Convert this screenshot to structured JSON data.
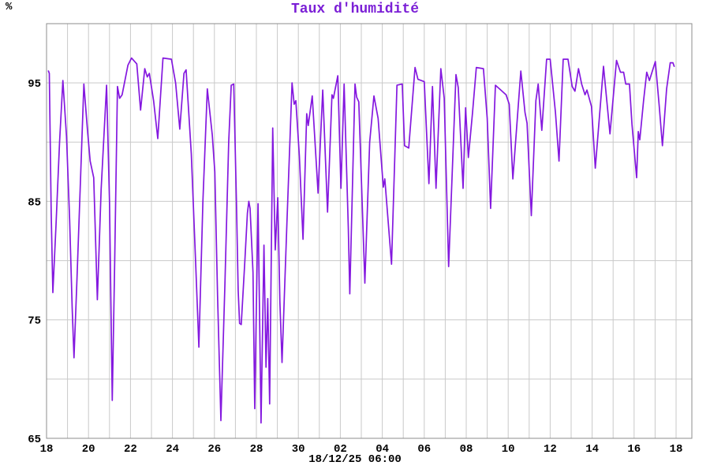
{
  "title": "Taux d'humidité",
  "y_axis": {
    "unit_label": "%",
    "tick_labels": [
      "95",
      "85",
      "75",
      "65"
    ],
    "tick_values": [
      95,
      85,
      75,
      65
    ],
    "min": 65,
    "max": 100,
    "grid_step": 5
  },
  "x_axis": {
    "tick_labels": [
      "18",
      "20",
      "22",
      "24",
      "26",
      "28",
      "30",
      "02",
      "04",
      "06",
      "08",
      "10",
      "12",
      "14",
      "16",
      "18"
    ],
    "caption": "18/12/25 06:00",
    "gridline_interval_days": 1,
    "label_interval_days": 2
  },
  "colors": {
    "line": "#8418df",
    "title": "#7b1fd6",
    "grid": "#c9c9c9",
    "axis_border": "#8c8c8c",
    "text": "#000000",
    "background": "#ffffff"
  },
  "chart_data": {
    "type": "line",
    "title": "Taux d'humidité",
    "ylabel": "%",
    "ylim": [
      65,
      100
    ],
    "grid": true,
    "legend_position": "none",
    "x_unit": "days since 18/12/25 06:00",
    "x_tick_labels": [
      "18",
      "20",
      "22",
      "24",
      "26",
      "28",
      "30",
      "02",
      "04",
      "06",
      "08",
      "10",
      "12",
      "14",
      "16",
      "18"
    ],
    "points": [
      [
        0.09,
        96.0
      ],
      [
        0.13,
        95.8
      ],
      [
        0.22,
        84.0
      ],
      [
        0.3,
        77.3
      ],
      [
        0.45,
        83.0
      ],
      [
        0.62,
        90.0
      ],
      [
        0.78,
        95.2
      ],
      [
        0.95,
        90.5
      ],
      [
        1.1,
        83.4
      ],
      [
        1.22,
        76.0
      ],
      [
        1.31,
        71.8
      ],
      [
        1.45,
        78.5
      ],
      [
        1.6,
        86.0
      ],
      [
        1.78,
        94.9
      ],
      [
        1.95,
        91.0
      ],
      [
        2.08,
        88.4
      ],
      [
        2.25,
        87.0
      ],
      [
        2.42,
        76.7
      ],
      [
        2.6,
        86.0
      ],
      [
        2.86,
        94.8
      ],
      [
        3.0,
        85.0
      ],
      [
        3.13,
        68.2
      ],
      [
        3.25,
        80.0
      ],
      [
        3.38,
        94.7
      ],
      [
        3.48,
        93.7
      ],
      [
        3.6,
        94.0
      ],
      [
        3.88,
        96.5
      ],
      [
        4.05,
        97.1
      ],
      [
        4.3,
        96.6
      ],
      [
        4.48,
        92.7
      ],
      [
        4.68,
        96.2
      ],
      [
        4.8,
        95.5
      ],
      [
        4.9,
        95.8
      ],
      [
        5.1,
        93.5
      ],
      [
        5.3,
        90.3
      ],
      [
        5.55,
        97.1
      ],
      [
        5.95,
        97.0
      ],
      [
        6.15,
        95.0
      ],
      [
        6.35,
        91.1
      ],
      [
        6.55,
        95.8
      ],
      [
        6.65,
        96.1
      ],
      [
        6.9,
        89.0
      ],
      [
        7.1,
        80.0
      ],
      [
        7.26,
        72.7
      ],
      [
        7.45,
        85.0
      ],
      [
        7.66,
        94.5
      ],
      [
        7.9,
        90.6
      ],
      [
        8.02,
        87.5
      ],
      [
        8.15,
        77.0
      ],
      [
        8.31,
        66.5
      ],
      [
        8.5,
        78.0
      ],
      [
        8.68,
        90.0
      ],
      [
        8.8,
        94.8
      ],
      [
        8.92,
        94.9
      ],
      [
        9.05,
        85.0
      ],
      [
        9.13,
        77.5
      ],
      [
        9.2,
        74.7
      ],
      [
        9.28,
        74.6
      ],
      [
        9.45,
        80.0
      ],
      [
        9.57,
        84.0
      ],
      [
        9.64,
        85.0
      ],
      [
        9.7,
        84.4
      ],
      [
        9.84,
        79.0
      ],
      [
        9.92,
        67.5
      ],
      [
        10.08,
        84.8
      ],
      [
        10.22,
        66.3
      ],
      [
        10.36,
        81.3
      ],
      [
        10.46,
        71.0
      ],
      [
        10.54,
        76.8
      ],
      [
        10.63,
        67.9
      ],
      [
        10.78,
        91.2
      ],
      [
        10.9,
        80.9
      ],
      [
        11.02,
        85.3
      ],
      [
        11.12,
        76.5
      ],
      [
        11.22,
        71.4
      ],
      [
        11.45,
        83.0
      ],
      [
        11.7,
        95.0
      ],
      [
        11.8,
        93.2
      ],
      [
        11.88,
        93.5
      ],
      [
        12.05,
        88.8
      ],
      [
        12.22,
        81.8
      ],
      [
        12.4,
        92.4
      ],
      [
        12.47,
        91.4
      ],
      [
        12.66,
        93.9
      ],
      [
        12.94,
        85.7
      ],
      [
        13.16,
        94.4
      ],
      [
        13.39,
        84.1
      ],
      [
        13.6,
        94.0
      ],
      [
        13.67,
        93.7
      ],
      [
        13.88,
        95.6
      ],
      [
        14.03,
        86.1
      ],
      [
        14.18,
        94.9
      ],
      [
        14.38,
        82.8
      ],
      [
        14.45,
        77.2
      ],
      [
        14.7,
        94.9
      ],
      [
        14.78,
        93.8
      ],
      [
        14.88,
        93.4
      ],
      [
        15.17,
        78.1
      ],
      [
        15.4,
        90.0
      ],
      [
        15.6,
        93.9
      ],
      [
        15.8,
        92.0
      ],
      [
        16.05,
        86.2
      ],
      [
        16.12,
        86.9
      ],
      [
        16.44,
        79.7
      ],
      [
        16.7,
        94.8
      ],
      [
        16.95,
        94.9
      ],
      [
        17.06,
        89.7
      ],
      [
        17.26,
        89.5
      ],
      [
        17.56,
        96.3
      ],
      [
        17.7,
        95.3
      ],
      [
        18.0,
        95.1
      ],
      [
        18.22,
        86.5
      ],
      [
        18.39,
        94.7
      ],
      [
        18.56,
        86.1
      ],
      [
        18.79,
        96.2
      ],
      [
        18.95,
        93.7
      ],
      [
        19.16,
        79.5
      ],
      [
        19.51,
        95.7
      ],
      [
        19.62,
        94.6
      ],
      [
        19.85,
        86.1
      ],
      [
        19.97,
        92.9
      ],
      [
        20.1,
        88.7
      ],
      [
        20.3,
        92.5
      ],
      [
        20.48,
        96.3
      ],
      [
        20.82,
        96.2
      ],
      [
        21.0,
        92.0
      ],
      [
        21.16,
        84.4
      ],
      [
        21.39,
        94.8
      ],
      [
        21.9,
        94.0
      ],
      [
        22.05,
        93.2
      ],
      [
        22.22,
        86.9
      ],
      [
        22.6,
        96.0
      ],
      [
        22.8,
        92.5
      ],
      [
        22.9,
        91.6
      ],
      [
        23.1,
        83.8
      ],
      [
        23.32,
        93.5
      ],
      [
        23.43,
        94.9
      ],
      [
        23.6,
        91.0
      ],
      [
        23.83,
        97.0
      ],
      [
        24.0,
        97.0
      ],
      [
        24.25,
        92.5
      ],
      [
        24.42,
        88.4
      ],
      [
        24.62,
        97.0
      ],
      [
        24.85,
        97.0
      ],
      [
        25.05,
        94.7
      ],
      [
        25.18,
        94.3
      ],
      [
        25.35,
        96.2
      ],
      [
        25.5,
        94.9
      ],
      [
        25.66,
        94.0
      ],
      [
        25.75,
        94.4
      ],
      [
        25.97,
        93.0
      ],
      [
        26.15,
        87.8
      ],
      [
        26.54,
        96.4
      ],
      [
        26.85,
        90.7
      ],
      [
        27.16,
        96.9
      ],
      [
        27.35,
        95.9
      ],
      [
        27.5,
        95.9
      ],
      [
        27.6,
        94.9
      ],
      [
        27.78,
        94.9
      ],
      [
        27.9,
        91.5
      ],
      [
        28.12,
        87.0
      ],
      [
        28.2,
        90.9
      ],
      [
        28.27,
        90.2
      ],
      [
        28.45,
        93.5
      ],
      [
        28.6,
        95.9
      ],
      [
        28.73,
        95.2
      ],
      [
        29.01,
        96.8
      ],
      [
        29.2,
        93.0
      ],
      [
        29.35,
        89.7
      ],
      [
        29.55,
        94.5
      ],
      [
        29.72,
        96.7
      ],
      [
        29.85,
        96.7
      ],
      [
        29.91,
        96.4
      ]
    ]
  }
}
